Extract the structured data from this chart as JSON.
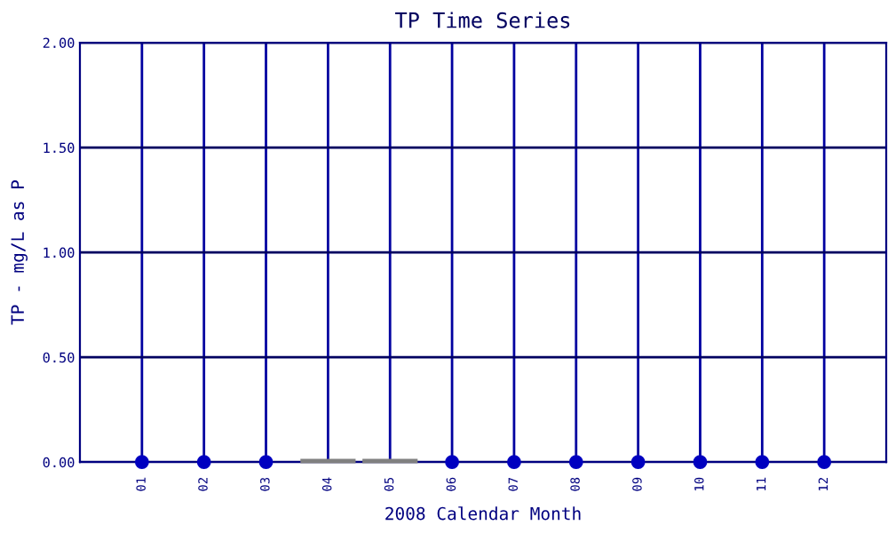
{
  "chart_data": {
    "type": "scatter",
    "title": "TP Time Series",
    "xlabel": "2008 Calendar Month",
    "ylabel": "TP - mg/L as P",
    "categories": [
      "01",
      "02",
      "03",
      "04",
      "05",
      "06",
      "07",
      "08",
      "09",
      "10",
      "11",
      "12"
    ],
    "series": [
      {
        "color": "#0000c0",
        "values": [
          0,
          0,
          0,
          null,
          null,
          0,
          0,
          0,
          0,
          0,
          0,
          0
        ]
      },
      {
        "type": "bar",
        "color": "#e00000",
        "values": [
          null,
          null,
          null,
          0.01,
          0.01,
          null,
          null,
          null,
          null,
          null,
          null,
          null
        ]
      }
    ],
    "ylim": [
      0,
      2
    ],
    "yticks": [
      {
        "value": 0,
        "label": "0.00"
      },
      {
        "value": 0.5,
        "label": "0.50"
      },
      {
        "value": 1,
        "label": "1.00"
      },
      {
        "value": 1.5,
        "label": "1.50"
      },
      {
        "value": 2,
        "label": "2.00"
      }
    ],
    "grid": true,
    "marker": "circle",
    "legend": false
  }
}
